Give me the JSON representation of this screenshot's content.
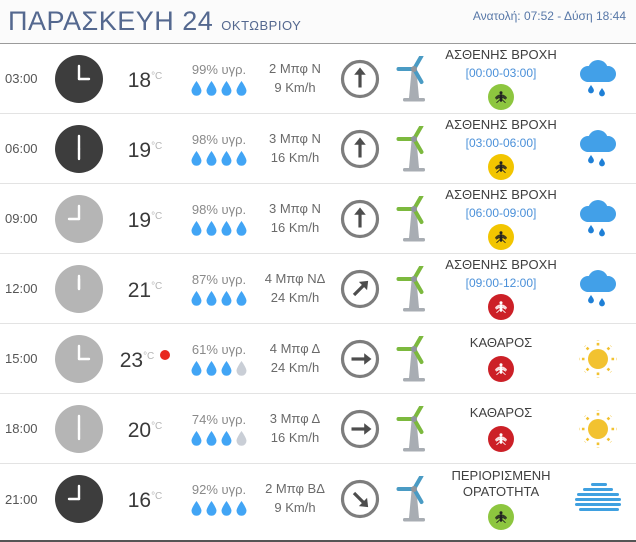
{
  "header": {
    "title_day": "ΠΑΡΑΣΚΕΥΗ 24",
    "title_month": "ΟΚΤΩΒΡΙΟΥ",
    "sun_info": "Ανατολή: 07:52 - Δύση 18:44"
  },
  "colors": {
    "accent_blue": "#4a90d9",
    "title_blue": "#54688f",
    "drop_active": "#42a5f5",
    "drop_inactive": "#c9ced6",
    "mosquito_green": "#8dc63f",
    "mosquito_yellow": "#f2c500",
    "mosquito_red": "#cc2027",
    "turbine_green": "#7cb93e",
    "turbine_blue": "#4a9bc4",
    "rain_cloud": "#42a0e8",
    "sun_yellow": "#f2c230",
    "fog_blue": "#3fa0e0",
    "max_temp_dot": "#e8281e"
  },
  "rows": [
    {
      "time": "03:00",
      "clock": "dark",
      "hour_deg": 90,
      "temp": "18",
      "temp_unit": "°C",
      "max_dot": false,
      "humidity": "99% υγρ.",
      "drops_active": 4,
      "wind_force": "2 Μπφ Ν",
      "wind_speed": "9 Km/h",
      "arrow_deg": 0,
      "turbine_color": "blue",
      "description": "ΑΣΘΕΝΗΣ ΒΡΟΧΗ",
      "time_range": "[00:00-03:00]",
      "mosquito": "green",
      "weather_icon": "rain"
    },
    {
      "time": "06:00",
      "clock": "dark",
      "hour_deg": 180,
      "temp": "19",
      "temp_unit": "°C",
      "max_dot": false,
      "humidity": "98% υγρ.",
      "drops_active": 4,
      "wind_force": "3 Μπφ Ν",
      "wind_speed": "16 Km/h",
      "arrow_deg": 0,
      "turbine_color": "green",
      "description": "ΑΣΘΕΝΗΣ ΒΡΟΧΗ",
      "time_range": "[03:00-06:00]",
      "mosquito": "yellow",
      "weather_icon": "rain"
    },
    {
      "time": "09:00",
      "clock": "light",
      "hour_deg": 270,
      "temp": "19",
      "temp_unit": "°C",
      "max_dot": false,
      "humidity": "98% υγρ.",
      "drops_active": 4,
      "wind_force": "3 Μπφ Ν",
      "wind_speed": "16 Km/h",
      "arrow_deg": 0,
      "turbine_color": "green",
      "description": "ΑΣΘΕΝΗΣ ΒΡΟΧΗ",
      "time_range": "[06:00-09:00]",
      "mosquito": "yellow",
      "weather_icon": "rain"
    },
    {
      "time": "12:00",
      "clock": "light",
      "hour_deg": 0,
      "temp": "21",
      "temp_unit": "°C",
      "max_dot": false,
      "humidity": "87% υγρ.",
      "drops_active": 4,
      "wind_force": "4 Μπφ ΝΔ",
      "wind_speed": "24 Km/h",
      "arrow_deg": 45,
      "turbine_color": "green",
      "description": "ΑΣΘΕΝΗΣ ΒΡΟΧΗ",
      "time_range": "[09:00-12:00]",
      "mosquito": "red",
      "weather_icon": "rain"
    },
    {
      "time": "15:00",
      "clock": "light",
      "hour_deg": 90,
      "temp": "23",
      "temp_unit": "°C",
      "max_dot": true,
      "humidity": "61% υγρ.",
      "drops_active": 3,
      "wind_force": "4 Μπφ Δ",
      "wind_speed": "24 Km/h",
      "arrow_deg": 90,
      "turbine_color": "green",
      "description": "ΚΑΘΑΡΟΣ",
      "time_range": "",
      "mosquito": "red",
      "weather_icon": "sun"
    },
    {
      "time": "18:00",
      "clock": "light",
      "hour_deg": 180,
      "temp": "20",
      "temp_unit": "°C",
      "max_dot": false,
      "humidity": "74% υγρ.",
      "drops_active": 3,
      "wind_force": "3 Μπφ Δ",
      "wind_speed": "16 Km/h",
      "arrow_deg": 90,
      "turbine_color": "green",
      "description": "ΚΑΘΑΡΟΣ",
      "time_range": "",
      "mosquito": "red",
      "weather_icon": "sun"
    },
    {
      "time": "21:00",
      "clock": "dark",
      "hour_deg": 270,
      "temp": "16",
      "temp_unit": "°C",
      "max_dot": false,
      "humidity": "92% υγρ.",
      "drops_active": 4,
      "wind_force": "2 Μπφ ΒΔ",
      "wind_speed": "9 Km/h",
      "arrow_deg": 135,
      "turbine_color": "blue",
      "description": "ΠΕΡΙΟΡΙΣΜΕΝΗ ΟΡΑΤΟΤΗΤΑ",
      "time_range": "",
      "mosquito": "green",
      "weather_icon": "fog"
    }
  ]
}
